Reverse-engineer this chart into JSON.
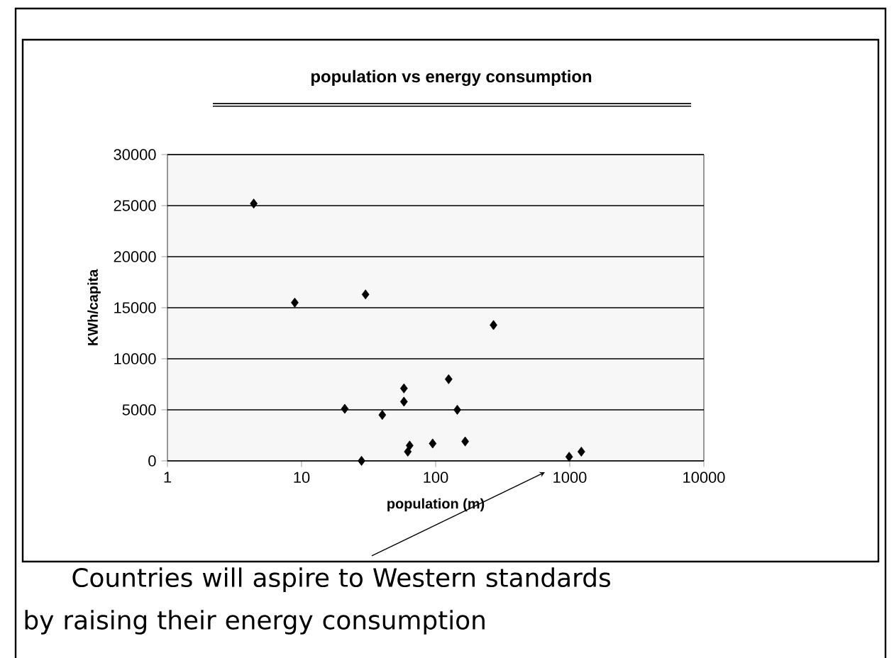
{
  "chart_data": {
    "type": "scatter",
    "title": "population vs energy consumption",
    "xlabel": "population  (m)",
    "ylabel": "KWh/capita",
    "annotations": [
      "Countries will aspire to Western standards by raising their energy consumption"
    ],
    "x": [
      4.4,
      8.9,
      30,
      270,
      21,
      40,
      28,
      58,
      58,
      62,
      64,
      95,
      125,
      145,
      166,
      990,
      1220
    ],
    "values": [
      25200,
      15500,
      16300,
      13300,
      5100,
      4500,
      0,
      7100,
      5800,
      900,
      1500,
      1700,
      8000,
      5000,
      1900,
      400,
      900
    ],
    "color": "#000000",
    "marker": "diamond",
    "log": "x",
    "grid": "y",
    "xlim": [
      1,
      10000
    ],
    "xticks": [
      1,
      10,
      100,
      1000,
      10000
    ],
    "ylim": [
      0,
      30000
    ],
    "yticks": [
      0,
      5000,
      10000,
      15000,
      20000,
      25000,
      30000
    ]
  }
}
